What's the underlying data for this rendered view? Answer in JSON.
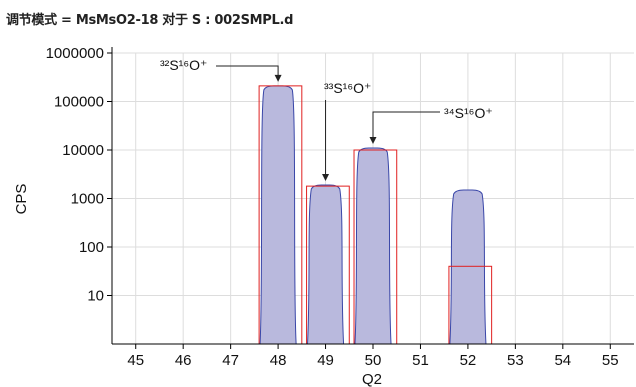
{
  "header": {
    "title": "调节模式 = MsMsO2-18 对于 S : 002SMPL.d"
  },
  "chart_data": {
    "type": "area",
    "title": "调节模式 = MsMsO2-18 对于 S : 002SMPL.d",
    "xlabel": "Q2",
    "ylabel": "CPS",
    "y_scale": "log",
    "xlim": [
      44.5,
      55.5
    ],
    "ylim": [
      1,
      1000000
    ],
    "x_ticks": [
      "45",
      "46",
      "47",
      "48",
      "49",
      "50",
      "51",
      "52",
      "53",
      "54",
      "55"
    ],
    "y_ticks": [
      "10",
      "100",
      "1000",
      "10000",
      "100000",
      "1000000"
    ],
    "grid": true,
    "fill_color": "#b9b9dd",
    "line_color": "#3a47a8",
    "box_color": "#e02020",
    "peaks": [
      {
        "x_center": 48,
        "peak_cps": 210000
      },
      {
        "x_center": 49,
        "peak_cps": 1900
      },
      {
        "x_center": 50,
        "peak_cps": 11000
      },
      {
        "x_center": 52,
        "peak_cps": 1500
      }
    ],
    "boxes": [
      {
        "x_from": 47.6,
        "x_to": 48.5,
        "cps": 210000
      },
      {
        "x_from": 48.6,
        "x_to": 49.5,
        "cps": 1800
      },
      {
        "x_from": 49.6,
        "x_to": 50.5,
        "cps": 10000
      },
      {
        "x_from": 51.6,
        "x_to": 52.5,
        "cps": 40
      }
    ],
    "annotations": [
      {
        "label": "³²S¹⁶O⁺",
        "x": 48,
        "cps": 210000
      },
      {
        "label": "³³S¹⁶O⁺",
        "x": 49,
        "cps": 1900
      },
      {
        "label": "³⁴S¹⁶O⁺",
        "x": 50,
        "cps": 11000
      }
    ]
  }
}
